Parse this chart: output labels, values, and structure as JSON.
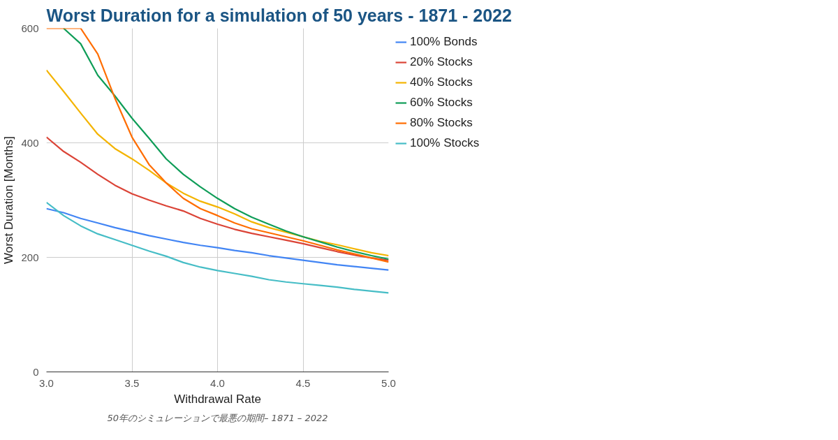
{
  "chart_data": {
    "type": "line",
    "title": "Worst Duration for a simulation of 50 years - 1871 - 2022",
    "xlabel": "Withdrawal Rate",
    "ylabel": "Worst Duration [Months]",
    "annotations": [
      "50年のシミュレーションで最悪の期間– 1871 – 2022"
    ],
    "x": [
      3.0,
      3.1,
      3.2,
      3.3,
      3.4,
      3.5,
      3.6,
      3.7,
      3.8,
      3.9,
      4.0,
      4.1,
      4.2,
      4.3,
      4.4,
      4.5,
      4.6,
      4.7,
      4.8,
      4.9,
      5.0
    ],
    "series": [
      {
        "name": "100% Bonds",
        "color": "#4285f4",
        "values": [
          285,
          278,
          268,
          260,
          252,
          245,
          238,
          232,
          226,
          221,
          217,
          212,
          208,
          203,
          199,
          195,
          191,
          187,
          184,
          181,
          178
        ]
      },
      {
        "name": "20% Stocks",
        "color": "#db4437",
        "values": [
          410,
          385,
          366,
          345,
          326,
          311,
          300,
          290,
          281,
          268,
          258,
          249,
          242,
          236,
          230,
          224,
          217,
          210,
          204,
          199,
          195
        ]
      },
      {
        "name": "40% Stocks",
        "color": "#f4b400",
        "values": [
          527,
          490,
          452,
          415,
          390,
          372,
          352,
          330,
          312,
          298,
          288,
          276,
          262,
          252,
          244,
          236,
          228,
          222,
          215,
          208,
          203
        ]
      },
      {
        "name": "60% Stocks",
        "color": "#0f9d58",
        "values": [
          null,
          600,
          573,
          518,
          482,
          443,
          408,
          372,
          345,
          323,
          303,
          285,
          270,
          258,
          246,
          236,
          227,
          218,
          210,
          203,
          197
        ]
      },
      {
        "name": "80% Stocks",
        "color": "#ff6d00",
        "values": [
          600,
          600,
          600,
          555,
          478,
          410,
          362,
          330,
          303,
          285,
          273,
          260,
          250,
          243,
          236,
          229,
          221,
          213,
          206,
          199,
          192
        ]
      },
      {
        "name": "100% Stocks",
        "color": "#46bdc6",
        "values": [
          296,
          273,
          255,
          241,
          231,
          221,
          211,
          202,
          191,
          183,
          177,
          172,
          167,
          161,
          157,
          154,
          151,
          148,
          144,
          141,
          138
        ]
      }
    ],
    "xlim": [
      3.0,
      5.0
    ],
    "xticks": [
      {
        "value": 3.0,
        "label": "3.0"
      },
      {
        "value": 3.5,
        "label": "3.5"
      },
      {
        "value": 4.0,
        "label": "4.0"
      },
      {
        "value": 4.5,
        "label": "4.5"
      },
      {
        "value": 5.0,
        "label": "5.0"
      }
    ],
    "ylim": [
      0,
      600
    ],
    "yticks": [
      0,
      200,
      400,
      600
    ],
    "grid": true,
    "legend": "right",
    "marker": "none",
    "line_style": "solid"
  }
}
